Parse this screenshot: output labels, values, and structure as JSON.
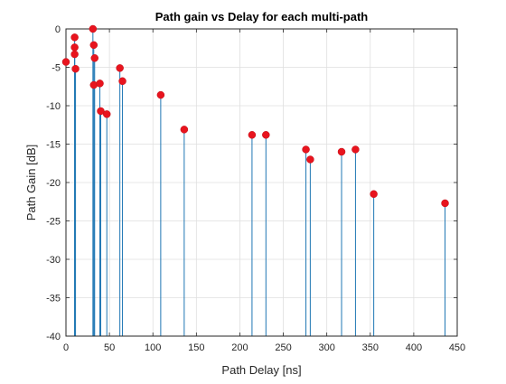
{
  "chart_data": {
    "type": "stem",
    "title": "Path gain vs Delay for each multi-path",
    "xlabel": "Path Delay [ns]",
    "ylabel": "Path Gain [dB]",
    "xlim": [
      0,
      450
    ],
    "ylim": [
      -40,
      0
    ],
    "xticks": [
      0,
      50,
      100,
      150,
      200,
      250,
      300,
      350,
      400,
      450
    ],
    "yticks": [
      0,
      -5,
      -10,
      -15,
      -20,
      -25,
      -30,
      -35,
      -40
    ],
    "grid": true,
    "stem_color": "#1f77b4",
    "marker_color": "#e8141e",
    "points": [
      {
        "x": 0,
        "y": -4.3
      },
      {
        "x": 10,
        "y": -1.1
      },
      {
        "x": 10,
        "y": -2.4
      },
      {
        "x": 10,
        "y": -3.3
      },
      {
        "x": 11,
        "y": -5.2
      },
      {
        "x": 31,
        "y": 0.0
      },
      {
        "x": 32,
        "y": -2.1
      },
      {
        "x": 33,
        "y": -3.8
      },
      {
        "x": 32,
        "y": -7.3
      },
      {
        "x": 39,
        "y": -7.1
      },
      {
        "x": 40,
        "y": -10.7
      },
      {
        "x": 47,
        "y": -11.1
      },
      {
        "x": 62,
        "y": -5.1
      },
      {
        "x": 65,
        "y": -6.8
      },
      {
        "x": 109,
        "y": -8.6
      },
      {
        "x": 136,
        "y": -13.1
      },
      {
        "x": 214,
        "y": -13.8
      },
      {
        "x": 230,
        "y": -13.8
      },
      {
        "x": 276,
        "y": -15.7
      },
      {
        "x": 281,
        "y": -17.0
      },
      {
        "x": 317,
        "y": -16.0
      },
      {
        "x": 333,
        "y": -15.7
      },
      {
        "x": 354,
        "y": -21.5
      },
      {
        "x": 436,
        "y": -22.7
      }
    ]
  }
}
